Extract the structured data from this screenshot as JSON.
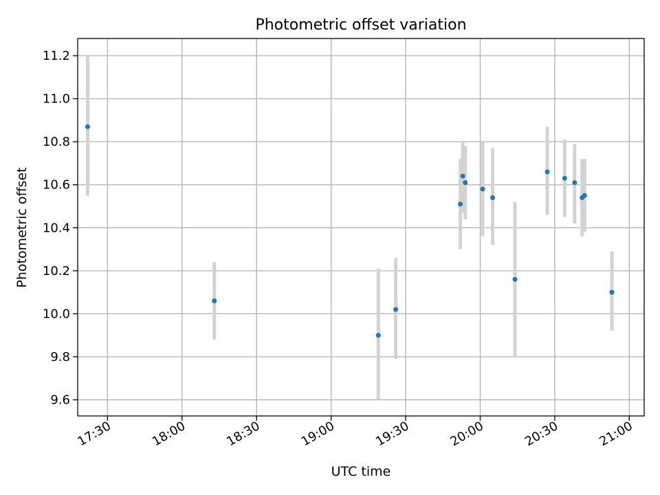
{
  "chart_data": {
    "type": "scatter",
    "title": "Photometric offset variation",
    "xlabel": "UTC time",
    "ylabel": "Photometric offset",
    "xlim": [
      "17:18",
      "21:06"
    ],
    "ylim": [
      9.525,
      11.28
    ],
    "x_ticks": [
      "17:30",
      "18:00",
      "18:30",
      "19:00",
      "19:30",
      "20:00",
      "20:30",
      "21:00"
    ],
    "y_ticks": [
      "9.6",
      "9.8",
      "10.0",
      "10.2",
      "10.4",
      "10.6",
      "10.8",
      "11.0",
      "11.2"
    ],
    "grid": true,
    "point_color": "#1f77b4",
    "errorbar_color": "#d3d3d3",
    "points": [
      {
        "x": "17:22",
        "y": 10.87,
        "ylow": 10.55,
        "yhigh": 11.2
      },
      {
        "x": "18:13",
        "y": 10.06,
        "ylow": 9.88,
        "yhigh": 10.24
      },
      {
        "x": "19:19",
        "y": 9.9,
        "ylow": 9.6,
        "yhigh": 10.21
      },
      {
        "x": "19:26",
        "y": 10.02,
        "ylow": 9.79,
        "yhigh": 10.26
      },
      {
        "x": "19:52",
        "y": 10.51,
        "ylow": 10.3,
        "yhigh": 10.72
      },
      {
        "x": "19:53",
        "y": 10.64,
        "ylow": 10.47,
        "yhigh": 10.8
      },
      {
        "x": "19:54",
        "y": 10.61,
        "ylow": 10.44,
        "yhigh": 10.78
      },
      {
        "x": "20:01",
        "y": 10.58,
        "ylow": 10.36,
        "yhigh": 10.8
      },
      {
        "x": "20:05",
        "y": 10.54,
        "ylow": 10.32,
        "yhigh": 10.77
      },
      {
        "x": "20:14",
        "y": 10.16,
        "ylow": 9.8,
        "yhigh": 10.52
      },
      {
        "x": "20:27",
        "y": 10.66,
        "ylow": 10.46,
        "yhigh": 10.87
      },
      {
        "x": "20:34",
        "y": 10.63,
        "ylow": 10.45,
        "yhigh": 10.81
      },
      {
        "x": "20:38",
        "y": 10.61,
        "ylow": 10.42,
        "yhigh": 10.79
      },
      {
        "x": "20:41",
        "y": 10.54,
        "ylow": 10.36,
        "yhigh": 10.72
      },
      {
        "x": "20:42",
        "y": 10.55,
        "ylow": 10.38,
        "yhigh": 10.72
      },
      {
        "x": "20:53",
        "y": 10.1,
        "ylow": 9.92,
        "yhigh": 10.29
      }
    ]
  }
}
